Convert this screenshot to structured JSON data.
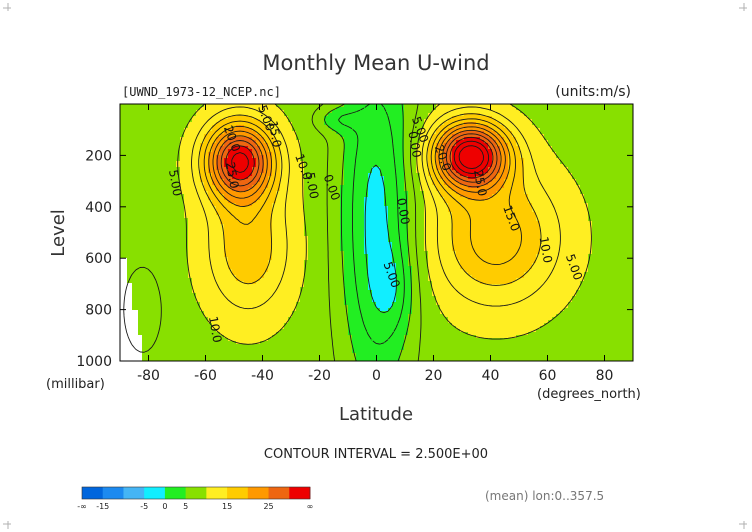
{
  "chart_data": {
    "type": "heatmap",
    "title": "Monthly Mean U-wind",
    "file_label": "[UWND_1973-12_NCEP.nc]",
    "units_label": "(units:m/s)",
    "xlabel": "Latitude",
    "ylabel": "Level",
    "x_unit_label": "(degrees_north)",
    "y_unit_label": "(millibar)",
    "xlim": [
      -90,
      90
    ],
    "ylim": [
      1000,
      0
    ],
    "y_scale": "linear, inverted",
    "x_ticks": [
      "-80",
      "-60",
      "-40",
      "-20",
      "0",
      "20",
      "40",
      "60",
      "80"
    ],
    "x_tick_values": [
      -80,
      -60,
      -40,
      -20,
      0,
      20,
      40,
      60,
      80
    ],
    "y_ticks": [
      "200",
      "400",
      "600",
      "800",
      "1000"
    ],
    "y_tick_values": [
      200,
      400,
      600,
      800,
      1000
    ],
    "contour_interval_text": "CONTOUR INTERVAL = 2.500E+00",
    "contour_labels": [
      {
        "text": "5.00",
        "lat": -72,
        "lev": 310
      },
      {
        "text": "5.00",
        "lat": -40,
        "lev": 60
      },
      {
        "text": "15.0",
        "lat": -37,
        "lev": 120
      },
      {
        "text": "20.0",
        "lat": -52,
        "lev": 140
      },
      {
        "text": "25.0",
        "lat": -52,
        "lev": 280
      },
      {
        "text": "10.0",
        "lat": -27,
        "lev": 250
      },
      {
        "text": "5.00",
        "lat": -24,
        "lev": 320
      },
      {
        "text": "0.00",
        "lat": -17,
        "lev": 330
      },
      {
        "text": "0.00",
        "lat": 8,
        "lev": 420
      },
      {
        "text": "5.00",
        "lat": 4,
        "lev": 670
      },
      {
        "text": "10.0",
        "lat": -58,
        "lev": 880
      },
      {
        "text": "5.00",
        "lat": 14,
        "lev": 105
      },
      {
        "text": "0.00",
        "lat": 12,
        "lev": 160
      },
      {
        "text": "20.0",
        "lat": 22,
        "lev": 215
      },
      {
        "text": "25.0",
        "lat": 35,
        "lev": 310
      },
      {
        "text": "15.0",
        "lat": 46,
        "lev": 450
      },
      {
        "text": "10.0",
        "lat": 58,
        "lev": 570
      },
      {
        "text": "5.00",
        "lat": 68,
        "lev": 640
      }
    ],
    "jets": [
      {
        "name": "southern",
        "lat": -48,
        "lev": 220,
        "peak": 27.5
      },
      {
        "name": "northern",
        "lat": 33,
        "lev": 200,
        "peak": 30
      }
    ],
    "colorbar": {
      "ticks": [
        "-∞",
        "-15",
        "-5",
        "0",
        "5",
        "15",
        "25",
        "∞"
      ],
      "levels": [
        -20,
        -15,
        -10,
        -5,
        0,
        5,
        10,
        15,
        20,
        25,
        30
      ],
      "colors": [
        "#0066dd",
        "#1c8af0",
        "#45b5f5",
        "#11eeff",
        "#22ee22",
        "#88e000",
        "#ffee22",
        "#ffcc00",
        "#ff9900",
        "#ee6611",
        "#ee0000"
      ]
    },
    "footer_note": "(mean) lon:0..357.5",
    "grid": false,
    "legend": "bottom-left colorbar"
  }
}
